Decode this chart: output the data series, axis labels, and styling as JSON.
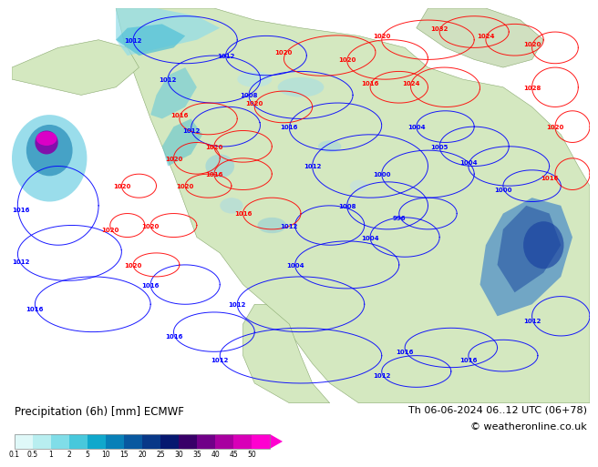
{
  "title_left": "Precipitation (6h) [mm] ECMWF",
  "title_right": "Th 06-06-2024 06..12 UTC (06+78)",
  "copyright": "© weatheronline.co.uk",
  "colorbar_levels": [
    "0.1",
    "0.5",
    "1",
    "2",
    "5",
    "10",
    "15",
    "20",
    "25",
    "30",
    "35",
    "40",
    "45",
    "50"
  ],
  "colorbar_colors": [
    "#dff8f8",
    "#b8eef0",
    "#80dde8",
    "#48c8dc",
    "#10a8cc",
    "#0880b8",
    "#0858a0",
    "#083888",
    "#061870",
    "#380068",
    "#700088",
    "#a800a0",
    "#d800b8",
    "#ff00d0"
  ],
  "ocean_color": "#b8d8ec",
  "land_color_light": "#d4e8c0",
  "land_color_mid": "#c8e0b0",
  "map_bg": "#c0d8e8",
  "bottom_bg": "#ffffff",
  "label_fontsize": 8.5,
  "copyright_fontsize": 8
}
